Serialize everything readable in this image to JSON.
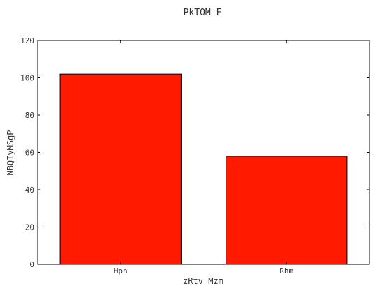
{
  "chart_data": {
    "type": "bar",
    "title": "PkTOM F",
    "xlabel": "zRtv Mzm",
    "ylabel": "NBQIyMSgP",
    "categories": [
      "Hpn",
      "Rhm"
    ],
    "values": [
      102,
      58
    ],
    "ylim": [
      0,
      120
    ],
    "yticks": [
      0,
      20,
      40,
      60,
      80,
      100,
      120
    ],
    "grid": false,
    "legend": "none",
    "colors": {
      "bar": "#ff1a00",
      "bar_edge": "#000000",
      "axis": "#000000",
      "text": "#333333"
    }
  }
}
